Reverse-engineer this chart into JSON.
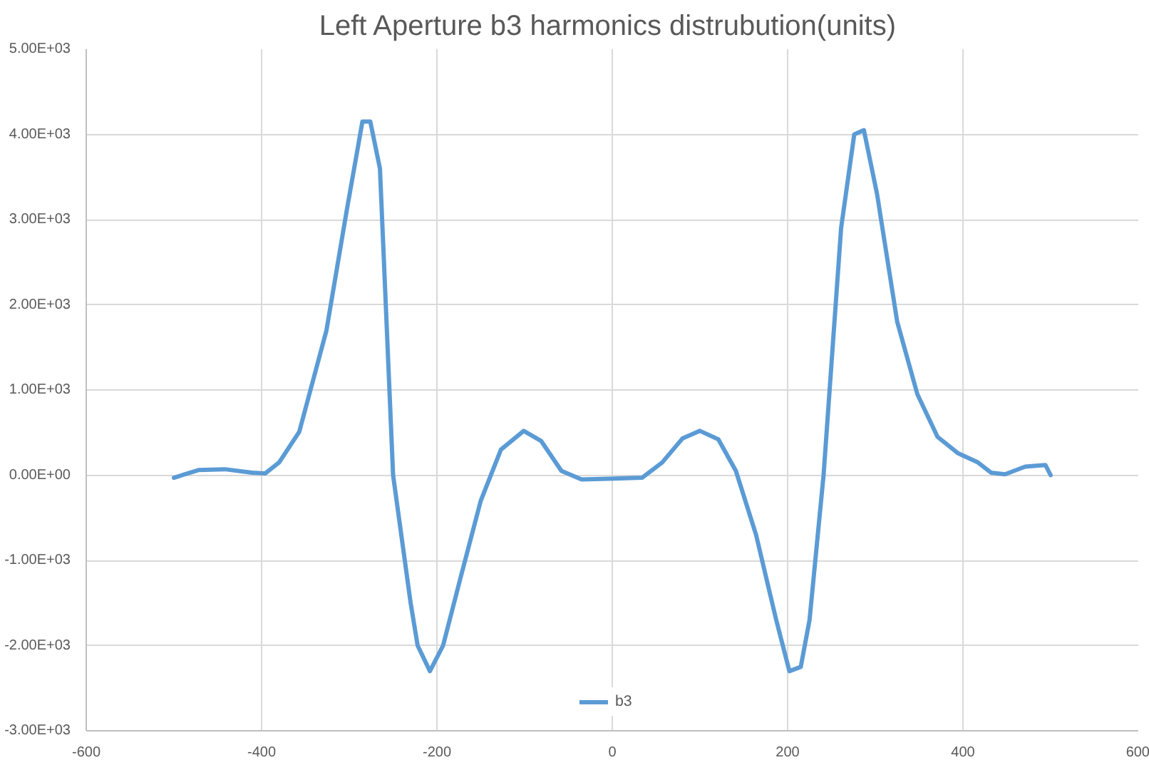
{
  "chart_data": {
    "type": "line",
    "title": "Left Aperture b3  harmonics distrubution(units)",
    "x": [
      -500,
      -472,
      -442,
      -411,
      -396,
      -380,
      -357,
      -326,
      -303,
      -285,
      -276,
      -265,
      -250,
      -230,
      -222,
      -208,
      -193,
      -173,
      -150,
      -127,
      -101,
      -81,
      -58,
      -35,
      3,
      34,
      57,
      80,
      100,
      121,
      141,
      164,
      187,
      202,
      215,
      225,
      241,
      261,
      276,
      287,
      302,
      325,
      348,
      371,
      394,
      417,
      432,
      448,
      471,
      494,
      500
    ],
    "series": [
      {
        "name": "b3",
        "color": "#5b9bd5",
        "values": [
          -30,
          60,
          70,
          30,
          20,
          150,
          510,
          1700,
          3100,
          4150,
          4150,
          3600,
          0,
          -1500,
          -2000,
          -2300,
          -2000,
          -1200,
          -300,
          300,
          520,
          400,
          50,
          -50,
          -40,
          -30,
          150,
          430,
          520,
          420,
          50,
          -700,
          -1700,
          -2300,
          -2250,
          -1700,
          0,
          2900,
          4000,
          4050,
          3300,
          1800,
          950,
          450,
          260,
          150,
          30,
          10,
          100,
          120,
          0
        ]
      }
    ],
    "xlim": [
      -600,
      600
    ],
    "xticks": [
      -600,
      -400,
      -200,
      0,
      200,
      400,
      600
    ],
    "ylim": [
      -3000,
      5000
    ],
    "yticks": [
      {
        "value": -3000,
        "label": "-3.00E+03"
      },
      {
        "value": -2000,
        "label": "-2.00E+03"
      },
      {
        "value": -1000,
        "label": "-1.00E+03"
      },
      {
        "value": 0,
        "label": "0.00E+00"
      },
      {
        "value": 1000,
        "label": "1.00E+03"
      },
      {
        "value": 2000,
        "label": "2.00E+03"
      },
      {
        "value": 3000,
        "label": "3.00E+03"
      },
      {
        "value": 4000,
        "label": "4.00E+03"
      },
      {
        "value": 5000,
        "label": "5.00E+03"
      }
    ],
    "grid": true,
    "legend": "bottom",
    "marker": "none",
    "line_style": "solid"
  }
}
